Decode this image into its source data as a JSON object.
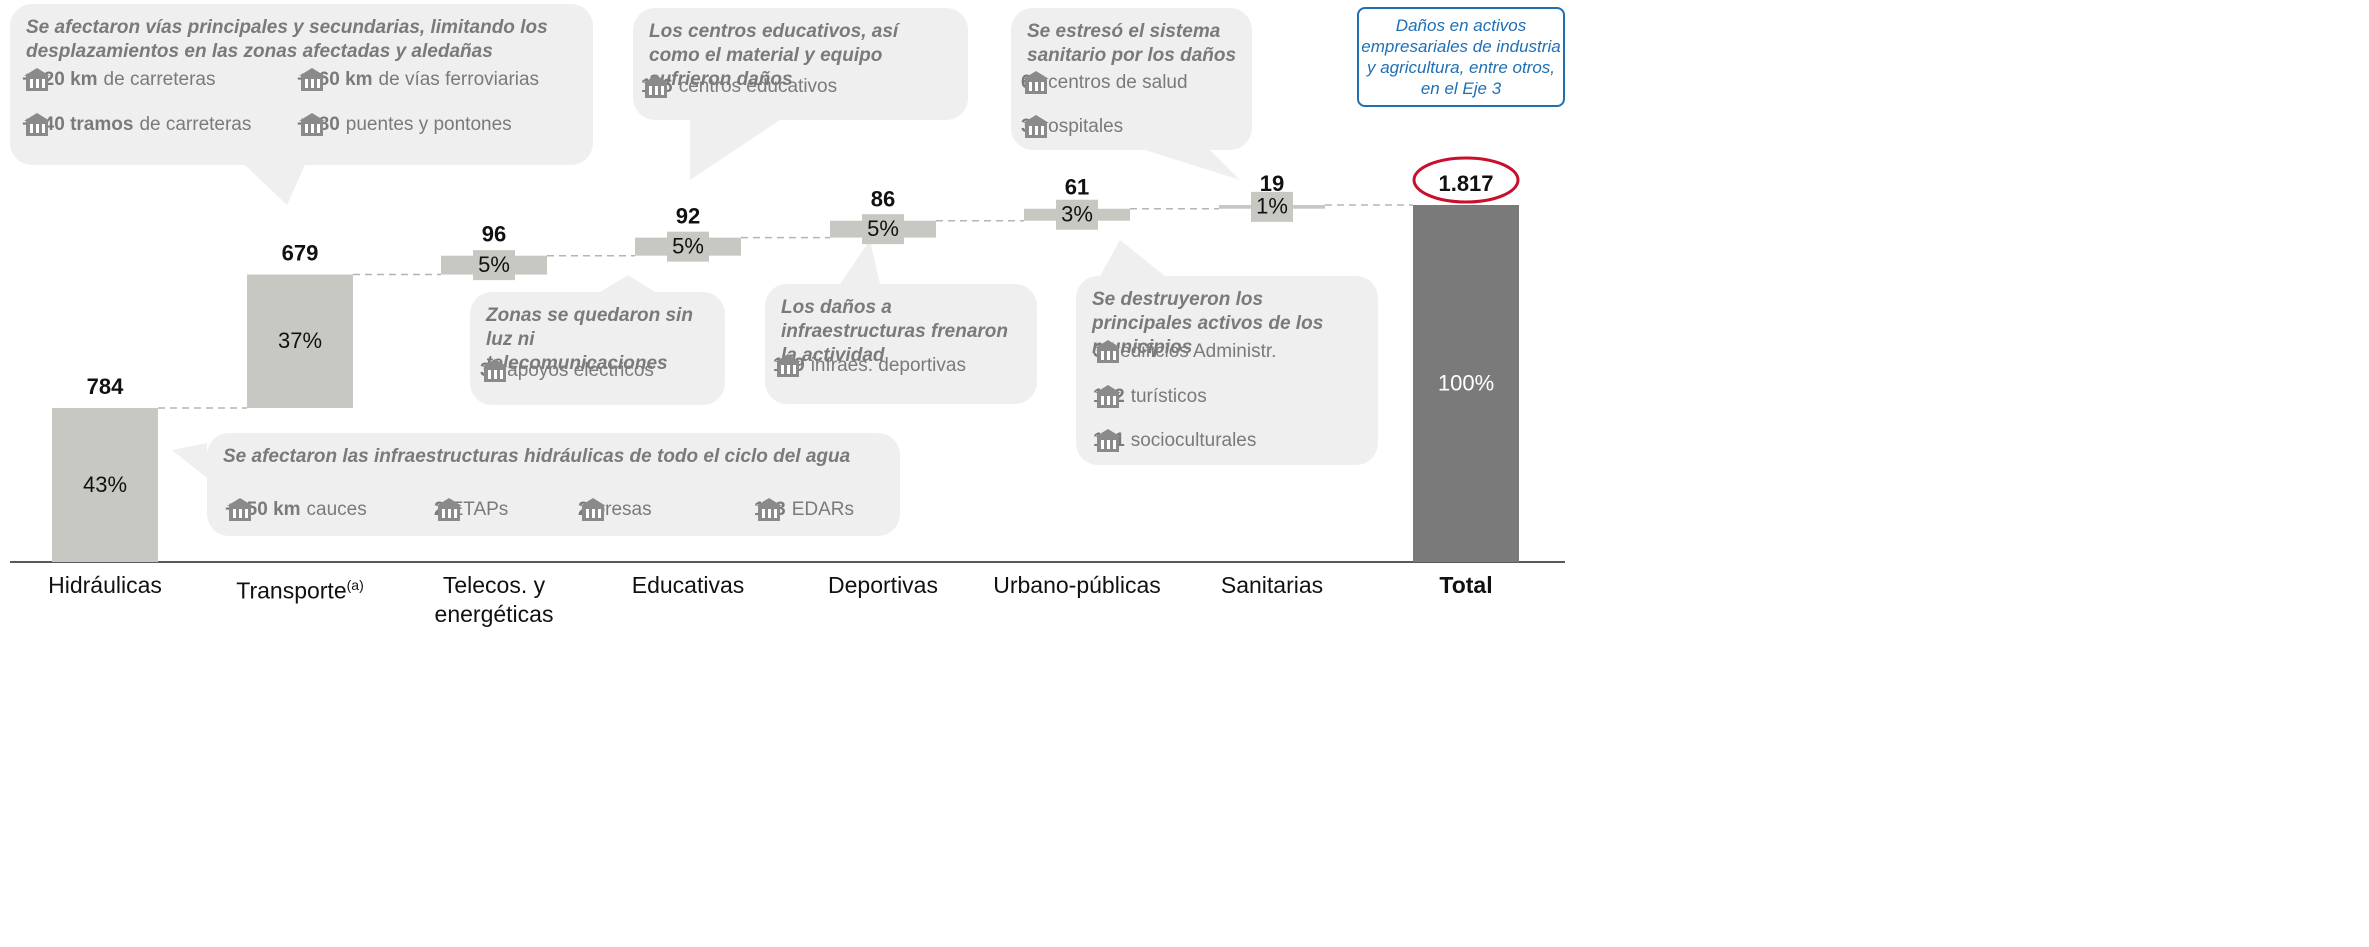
{
  "chart_data": {
    "type": "waterfall",
    "categories": [
      "Hidráulicas",
      "Transporte",
      "Telecos. y energéticas",
      "Educativas",
      "Deportivas",
      "Urbano-públicas",
      "Sanitarias",
      "Total"
    ],
    "category_superscripts": [
      null,
      "(a)",
      null,
      null,
      null,
      null,
      null,
      null
    ],
    "values": [
      784,
      679,
      96,
      92,
      86,
      61,
      19,
      1817
    ],
    "value_labels": [
      "784",
      "679",
      "96",
      "92",
      "86",
      "61",
      "19",
      "1.817"
    ],
    "percent_labels": [
      "43%",
      "37%",
      "5%",
      "5%",
      "5%",
      "3%",
      "1%",
      "100%"
    ],
    "ylim": [
      0,
      1817
    ],
    "color": "#c8c8c3",
    "total_color": "#7a7a7a",
    "annotations": [
      {
        "title": "Se afectaron vías principales y secundarias, limitando los desplazamientos en las zonas afectadas y aledañas",
        "items": [
          {
            "bold": "+820 km",
            "text": "de carreteras"
          },
          {
            "bold": "+560 km",
            "text": "de vías ferroviarias"
          },
          {
            "bold": "+140 tramos",
            "text": "de carreteras"
          },
          {
            "bold": "+380",
            "text": "puentes y pontones"
          }
        ]
      },
      {
        "title": "Los centros educativos, así como el material y equipo sufrieron daños",
        "items": [
          {
            "bold": "106",
            "text": "centros educativos"
          }
        ]
      },
      {
        "title": "Se estresó el sistema sanitario por los daños",
        "items": [
          {
            "bold": "61",
            "text": "centros de salud"
          },
          {
            "bold": "3",
            "text": "hospitales"
          }
        ]
      },
      {
        "title": "Zonas se quedaron sin luz ni telecomunicaciones",
        "items": [
          {
            "bold": "35",
            "text": "apoyos eléctricos"
          }
        ]
      },
      {
        "title": "Los daños a infraestructuras frenaron la actividad",
        "items": [
          {
            "bold": "139",
            "text": "infraes. deportivas"
          }
        ]
      },
      {
        "title": "Se destruyeron los principales activos de los municipios",
        "items": [
          {
            "bold": "31",
            "text": "edificios Administr."
          },
          {
            "bold": "122",
            "text": "turísticos"
          },
          {
            "bold": "151",
            "text": "socioculturales"
          }
        ]
      },
      {
        "title": "Se afectaron las infraestructuras hidráulicas de todo el ciclo del agua",
        "items": [
          {
            "bold": "+350 km",
            "text": "cauces"
          },
          {
            "bold": "2",
            "text": "ETAPs"
          },
          {
            "bold": "2",
            "text": "presas"
          },
          {
            "bold": "123",
            "text": "EDARs"
          }
        ]
      }
    ],
    "note": "Daños en activos empresariales de industria y agricultura, entre otros, en el Eje 3"
  }
}
